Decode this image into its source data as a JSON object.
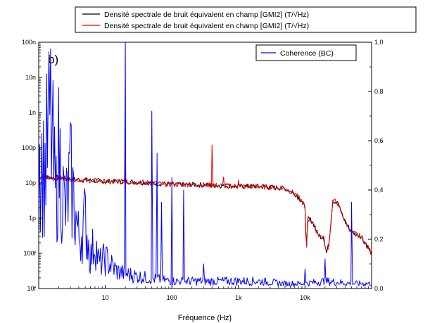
{
  "chart_data": {
    "type": "line",
    "panel_label": "b)",
    "xlabel": "Fréquence (Hz)",
    "x_scale": "log",
    "xlim": [
      1,
      100000
    ],
    "x_ticks": [
      {
        "value": 10,
        "label": "10"
      },
      {
        "value": 100,
        "label": "100"
      },
      {
        "value": 1000,
        "label": "1k"
      },
      {
        "value": 10000,
        "label": "10k"
      }
    ],
    "y_left": {
      "scale": "log",
      "lim": [
        1e-14,
        1e-07
      ],
      "ticks": [
        {
          "value": 1e-07,
          "label": "100n"
        },
        {
          "value": 1e-08,
          "label": "10n"
        },
        {
          "value": 1e-09,
          "label": "1n"
        },
        {
          "value": 1e-10,
          "label": "100p"
        },
        {
          "value": 1e-11,
          "label": "10p"
        },
        {
          "value": 1e-12,
          "label": "1p"
        },
        {
          "value": 1e-13,
          "label": "100f"
        },
        {
          "value": 1e-14,
          "label": "10f"
        }
      ]
    },
    "y_right": {
      "scale": "linear",
      "lim": [
        0,
        1
      ],
      "ticks": [
        {
          "value": 1.0,
          "label": "1,0"
        },
        {
          "value": 0.8,
          "label": "0,8"
        },
        {
          "value": 0.6,
          "label": "0,6"
        },
        {
          "value": 0.4,
          "label": "0,4"
        },
        {
          "value": 0.2,
          "label": "0,2"
        },
        {
          "value": 0.0,
          "label": "0,0"
        }
      ]
    },
    "legend_top": {
      "placement": "above plot",
      "entries": [
        {
          "label": "Densité spectrale de bruit équivalent en champ [GMI2] (T/√Hz)",
          "color": "#000000"
        },
        {
          "label": "Densité spectrale de bruit équivalent en champ [GMI2] (T/√Hz)",
          "color": "#e00000"
        }
      ]
    },
    "legend_inset": {
      "placement": "top-right",
      "entries": [
        {
          "label": "Coherence (BC)",
          "color": "#0000ff"
        }
      ]
    },
    "series": [
      {
        "color": "#000000",
        "axis": "left",
        "points": [
          [
            1,
            1.5e-11
          ],
          [
            2,
            1.4e-11
          ],
          [
            3,
            1.3e-11
          ],
          [
            5,
            1.2e-11
          ],
          [
            10,
            1.1e-11
          ],
          [
            20,
            1.1e-11
          ],
          [
            50,
            1e-11
          ],
          [
            100,
            9e-12
          ],
          [
            200,
            9e-12
          ],
          [
            500,
            8.5e-12
          ],
          [
            1000,
            8e-12
          ],
          [
            2000,
            8e-12
          ],
          [
            5000,
            7e-12
          ],
          [
            7000,
            5e-12
          ],
          [
            9000,
            3e-12
          ],
          [
            10000,
            2e-12
          ],
          [
            10500,
            1.2e-13
          ],
          [
            11000,
            1e-12
          ],
          [
            13000,
            8e-13
          ],
          [
            15000,
            4e-13
          ],
          [
            17000,
            3e-13
          ],
          [
            19000,
            3e-13
          ],
          [
            21000,
            1e-13
          ],
          [
            23000,
            2e-13
          ],
          [
            26000,
            3e-12
          ],
          [
            30000,
            3e-12
          ],
          [
            40000,
            8e-13
          ],
          [
            50000,
            4e-13
          ],
          [
            70000,
            3e-13
          ],
          [
            100000,
            1e-13
          ]
        ]
      },
      {
        "color": "#e00000",
        "axis": "left",
        "points": [
          [
            1,
            1.5e-11
          ],
          [
            2,
            1.4e-11
          ],
          [
            3,
            1.3e-11
          ],
          [
            5,
            1.2e-11
          ],
          [
            10,
            1.1e-11
          ],
          [
            20,
            1.1e-11
          ],
          [
            50,
            1e-11
          ],
          [
            100,
            9e-12
          ],
          [
            200,
            9e-12
          ],
          [
            500,
            8.5e-12
          ],
          [
            1000,
            8e-12
          ],
          [
            2000,
            8e-12
          ],
          [
            5000,
            7e-12
          ],
          [
            7000,
            5e-12
          ],
          [
            9000,
            3e-12
          ],
          [
            10000,
            2e-12
          ],
          [
            10500,
            1.2e-13
          ],
          [
            11000,
            1e-12
          ],
          [
            13000,
            8e-13
          ],
          [
            15000,
            4e-13
          ],
          [
            17000,
            3e-13
          ],
          [
            19000,
            3e-13
          ],
          [
            21000,
            1e-13
          ],
          [
            23000,
            2e-13
          ],
          [
            26000,
            3e-12
          ],
          [
            30000,
            3e-12
          ],
          [
            40000,
            8e-13
          ],
          [
            50000,
            4e-13
          ],
          [
            70000,
            3e-13
          ],
          [
            100000,
            1e-13
          ]
        ],
        "peaks": [
          [
            20,
            2e-10
          ],
          [
            60,
            1e-11
          ],
          [
            100,
            1e-11
          ],
          [
            400,
            1.2e-10
          ],
          [
            600,
            1.5e-11
          ],
          [
            1000,
            1.2e-11
          ]
        ]
      },
      {
        "color": "#0000ff",
        "axis": "right",
        "points": [
          [
            1,
            0.6
          ],
          [
            1.2,
            0.45
          ],
          [
            1.5,
            0.7
          ],
          [
            1.8,
            0.35
          ],
          [
            2,
            0.55
          ],
          [
            2.5,
            0.3
          ],
          [
            3,
            0.45
          ],
          [
            4,
            0.2
          ],
          [
            5,
            0.28
          ],
          [
            6,
            0.12
          ],
          [
            7,
            0.2
          ],
          [
            8,
            0.1
          ],
          [
            10,
            0.12
          ],
          [
            15,
            0.07
          ],
          [
            20,
            0.06
          ],
          [
            30,
            0.05
          ],
          [
            50,
            0.04
          ],
          [
            100,
            0.03
          ],
          [
            200,
            0.03
          ],
          [
            500,
            0.03
          ],
          [
            1000,
            0.03
          ],
          [
            2000,
            0.03
          ],
          [
            5000,
            0.02
          ],
          [
            10000,
            0.02
          ],
          [
            20000,
            0.03
          ],
          [
            50000,
            0.02
          ],
          [
            100000,
            0.02
          ]
        ],
        "peaks": [
          [
            20,
            1.0
          ],
          [
            50,
            0.72
          ],
          [
            60,
            0.55
          ],
          [
            70,
            0.35
          ],
          [
            100,
            0.45
          ],
          [
            150,
            0.4
          ],
          [
            300,
            0.1
          ],
          [
            10000,
            0.08
          ],
          [
            20000,
            0.12
          ],
          [
            50000,
            0.35
          ]
        ]
      }
    ]
  }
}
